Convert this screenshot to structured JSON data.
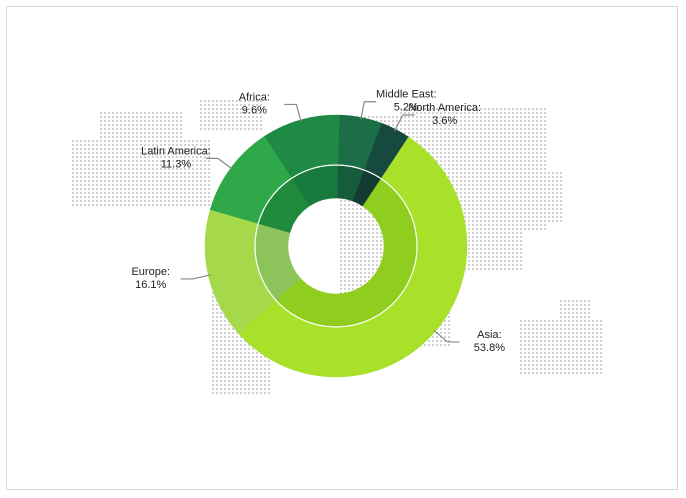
{
  "chart_data": {
    "type": "pie",
    "variant": "nested-donut",
    "title": "",
    "background": "world-map-dots",
    "slices": [
      {
        "name": "Asia",
        "label": "Asia:",
        "value": 53.8,
        "pct_text": "53.8%",
        "color": "#a8e02a",
        "inner_color": "#8fce1e"
      },
      {
        "name": "Europe",
        "label": "Europe:",
        "value": 16.1,
        "pct_text": "16.1%",
        "color": "#a6d84c",
        "inner_color": "#8cc45b"
      },
      {
        "name": "Latin America",
        "label": "Latin America:",
        "value": 11.3,
        "pct_text": "11.3%",
        "color": "#2fa84a",
        "inner_color": "#1f8a3a"
      },
      {
        "name": "Africa",
        "label": "Africa:",
        "value": 9.6,
        "pct_text": "9.6%",
        "color": "#1e8a46",
        "inner_color": "#187a3c"
      },
      {
        "name": "Middle East",
        "label": "Middle East:",
        "value": 5.2,
        "pct_text": "5.2%",
        "color": "#1b6e45",
        "inner_color": "#155c3a"
      },
      {
        "name": "North America",
        "label": "North America:",
        "value": 3.6,
        "pct_text": "3.6%",
        "color": "#174a3e",
        "inner_color": "#123c33"
      }
    ],
    "colors": {
      "leader": "#888888",
      "map_dot": "#d0d0d0",
      "ring_separator": "#ffffff"
    }
  }
}
